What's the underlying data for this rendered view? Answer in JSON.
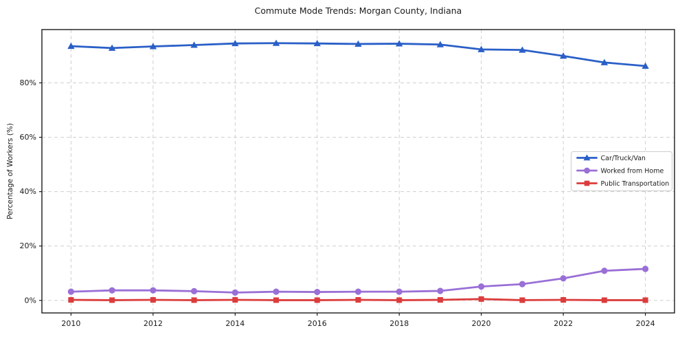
{
  "chart_data": {
    "type": "line",
    "title": "Commute Mode Trends: Morgan County, Indiana",
    "xlabel": "",
    "ylabel": "Percentage of Workers (%)",
    "x": [
      2010,
      2011,
      2012,
      2013,
      2014,
      2015,
      2016,
      2017,
      2018,
      2019,
      2020,
      2021,
      2022,
      2023,
      2024
    ],
    "series": [
      {
        "name": "Car/Truck/Van",
        "color": "#2a5fc7",
        "marker": "triangle-up-icon",
        "values": [
          93.5,
          92.8,
          93.4,
          93.9,
          94.5,
          94.6,
          94.5,
          94.3,
          94.4,
          94.1,
          92.3,
          92.1,
          89.9,
          87.5,
          86.2
        ]
      },
      {
        "name": "Worked from Home",
        "color": "#9a6fd6",
        "marker": "circle-icon",
        "values": [
          3.2,
          3.7,
          3.7,
          3.4,
          2.9,
          3.2,
          3.1,
          3.2,
          3.2,
          3.5,
          5.1,
          6.0,
          8.1,
          10.9,
          11.6
        ]
      },
      {
        "name": "Public Transportation",
        "color": "#dc3c3c",
        "marker": "square-icon",
        "values": [
          0.2,
          0.1,
          0.2,
          0.1,
          0.2,
          0.1,
          0.1,
          0.2,
          0.1,
          0.2,
          0.5,
          0.1,
          0.2,
          0.1,
          0.1
        ]
      }
    ],
    "xtick_values": [
      2010,
      2012,
      2014,
      2016,
      2018,
      2020,
      2022,
      2024
    ],
    "xtick_labels": [
      "2010",
      "2012",
      "2014",
      "2016",
      "2018",
      "2020",
      "2022",
      "2024"
    ],
    "ytick_values": [
      0,
      20,
      40,
      60,
      80
    ],
    "ytick_labels": [
      "0%",
      "20%",
      "40%",
      "60%",
      "80%"
    ],
    "xlim": [
      2009.29,
      2024.71
    ],
    "ylim": [
      -4.6,
      99.6
    ],
    "grid": "dashed",
    "grid_color": "#cfcfcf",
    "frame_color": "#1a1a1a",
    "background_color": "#ffffff",
    "legend_position": "center-right"
  }
}
